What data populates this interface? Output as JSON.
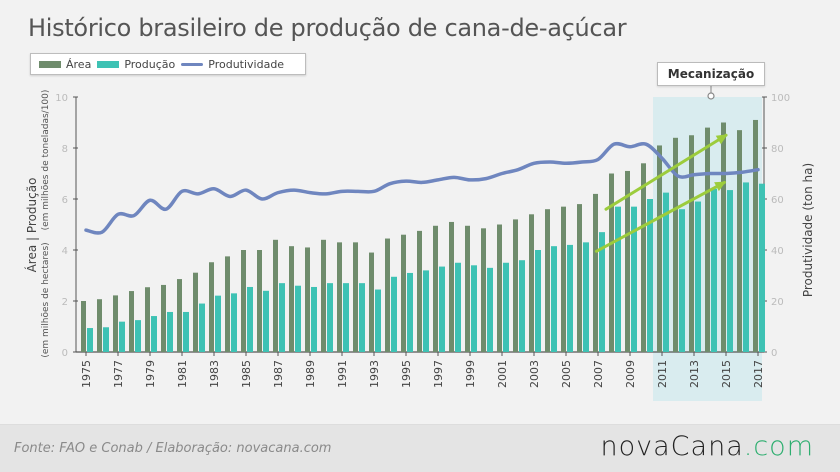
{
  "title": "Histórico brasileiro de produção de cana-de-açúcar",
  "legend": {
    "items": [
      {
        "label": "Área",
        "color": "#6f8c6c",
        "kind": "bar"
      },
      {
        "label": "Produção",
        "color": "#3ec2b4",
        "kind": "bar"
      },
      {
        "label": "Produtividade",
        "color": "#6f86bf",
        "kind": "line"
      }
    ]
  },
  "annotation": {
    "label": "Mecanização",
    "start_year": 2010.5,
    "end_year": 2017.5,
    "color": "#d9ecef"
  },
  "footer": {
    "source": "Fonte: FAO e Conab / Elaboração: novacana.com",
    "brand_main": "novaCana",
    "brand_suffix": ".com"
  },
  "chart_data": {
    "type": "bar",
    "title": "Histórico brasileiro de produção de cana-de-açúcar",
    "xlabel": "",
    "ylabel_left": {
      "area_label": "Área",
      "separator": "|",
      "prod_label": "Produção",
      "area_unit": "(em milhões de hectares)",
      "prod_unit": "(em milhões de toneladas/100)"
    },
    "ylabel_right": "Produtividade (ton ha)",
    "ylim_left": [
      0,
      10
    ],
    "yticks_left": [
      0,
      2,
      4,
      6,
      8,
      10
    ],
    "ylim_right": [
      0,
      100
    ],
    "yticks_right": [
      0,
      20,
      40,
      60,
      80,
      100
    ],
    "grid": false,
    "legend_position": "top-left",
    "x": [
      1975,
      1976,
      1977,
      1978,
      1979,
      1980,
      1981,
      1982,
      1983,
      1984,
      1985,
      1986,
      1987,
      1988,
      1989,
      1990,
      1991,
      1992,
      1993,
      1994,
      1995,
      1996,
      1997,
      1998,
      1999,
      2000,
      2001,
      2002,
      2003,
      2004,
      2005,
      2006,
      2007,
      2008,
      2009,
      2010,
      2011,
      2012,
      2013,
      2014,
      2015,
      2016,
      2017
    ],
    "xtick_labels": [
      "1975",
      "1977",
      "1979",
      "1981",
      "1983",
      "1985",
      "1987",
      "1989",
      "1991",
      "1993",
      "1995",
      "1997",
      "1999",
      "2001",
      "2003",
      "2005",
      "2007",
      "2009",
      "2011",
      "2013",
      "2015",
      "2017"
    ],
    "series": [
      {
        "name": "Área",
        "type": "bar",
        "axis": "left",
        "color": "#6f8c6c",
        "values": [
          2.0,
          2.07,
          2.22,
          2.39,
          2.54,
          2.63,
          2.86,
          3.11,
          3.52,
          3.75,
          4.0,
          4.0,
          4.4,
          4.15,
          4.1,
          4.4,
          4.3,
          4.3,
          3.9,
          4.45,
          4.6,
          4.75,
          4.95,
          5.1,
          4.95,
          4.85,
          5.0,
          5.2,
          5.4,
          5.6,
          5.7,
          5.8,
          6.2,
          7.0,
          7.1,
          7.4,
          8.1,
          8.4,
          8.5,
          8.8,
          9.0,
          8.7,
          9.1
        ]
      },
      {
        "name": "Produção",
        "type": "bar",
        "axis": "left",
        "color": "#3ec2b4",
        "values": [
          0.94,
          0.97,
          1.19,
          1.25,
          1.41,
          1.57,
          1.57,
          1.9,
          2.21,
          2.3,
          2.55,
          2.4,
          2.7,
          2.6,
          2.55,
          2.7,
          2.7,
          2.7,
          2.45,
          2.95,
          3.1,
          3.2,
          3.35,
          3.5,
          3.4,
          3.3,
          3.5,
          3.6,
          4.0,
          4.15,
          4.2,
          4.3,
          4.7,
          5.7,
          5.7,
          6.0,
          6.25,
          5.6,
          5.9,
          6.4,
          6.35,
          6.65,
          6.6
        ]
      },
      {
        "name": "Produtividade",
        "type": "line",
        "axis": "right",
        "color": "#6f86bf",
        "values": [
          47.8,
          47.0,
          54.0,
          53.5,
          59.5,
          56.0,
          63.0,
          62.0,
          64.0,
          61.0,
          63.5,
          60.0,
          62.5,
          63.5,
          62.5,
          62.0,
          63.0,
          63.0,
          63.0,
          66.0,
          67.0,
          66.5,
          67.5,
          68.5,
          67.5,
          68.0,
          70.0,
          71.5,
          74.0,
          74.5,
          74.0,
          74.5,
          75.5,
          81.5,
          80.5,
          81.5,
          76.0,
          69.0,
          69.5,
          70.0,
          70.0,
          70.5,
          71.5
        ]
      }
    ],
    "annotations": [
      {
        "text": "Mecanização",
        "type": "shaded-region",
        "x_from": 2011,
        "x_to": 2017
      },
      {
        "type": "trend-arrow",
        "color": "#9ccc3c",
        "from": [
          2007.5,
          56
        ],
        "to": [
          2015,
          85
        ],
        "axis": "right"
      },
      {
        "type": "trend-arrow",
        "color": "#9ccc3c",
        "from": [
          2006.9,
          39.5
        ],
        "to": [
          2014.9,
          66.5
        ],
        "axis": "right"
      }
    ]
  }
}
